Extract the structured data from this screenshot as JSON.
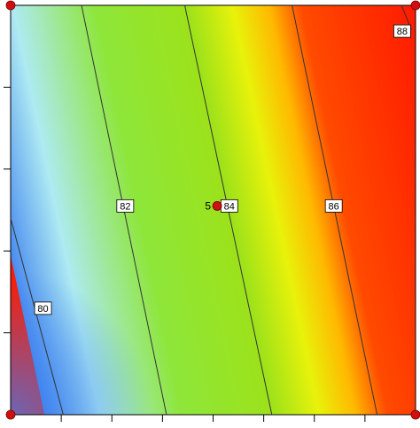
{
  "chart_data": {
    "type": "heatmap",
    "title": "",
    "xlabel": "",
    "ylabel": "",
    "xlim": [
      0,
      1
    ],
    "ylim": [
      0,
      1
    ],
    "colormap": [
      "#4a8cf0",
      "#aeeaf2",
      "#8ee63a",
      "#9de21a",
      "#e8f20a",
      "#ffb800",
      "#ff4a00",
      "#ff1a00"
    ],
    "value_range": [
      79.3,
      88.0
    ],
    "contours": [
      {
        "level": "80",
        "points": [
          [
            0.0,
            0.48
          ],
          [
            0.13,
            0.0
          ]
        ],
        "label_at": [
          0.08,
          0.26
        ]
      },
      {
        "level": "82",
        "points": [
          [
            0.175,
            1.0
          ],
          [
            0.385,
            0.0
          ]
        ],
        "label_at": [
          0.283,
          0.51
        ]
      },
      {
        "level": "84",
        "points": [
          [
            0.43,
            1.0
          ],
          [
            0.645,
            0.0
          ]
        ],
        "label_at": [
          0.54,
          0.51
        ]
      },
      {
        "level": "86",
        "points": [
          [
            0.695,
            1.0
          ],
          [
            0.905,
            0.0
          ]
        ],
        "label_at": [
          0.798,
          0.51
        ]
      },
      {
        "level": "88",
        "points": [
          [
            0.99,
            0.94
          ],
          [
            0.965,
            1.0
          ]
        ],
        "label_at": [
          0.967,
          0.937
        ]
      }
    ],
    "points": [
      {
        "label": "5",
        "x": 0.51,
        "y": 0.51,
        "color": "#d01010"
      }
    ],
    "corner_points": [
      [
        0,
        0
      ],
      [
        1,
        0
      ],
      [
        0,
        1
      ],
      [
        1,
        1
      ]
    ],
    "x_ticks": 8,
    "y_ticks": 5,
    "grid": false
  }
}
